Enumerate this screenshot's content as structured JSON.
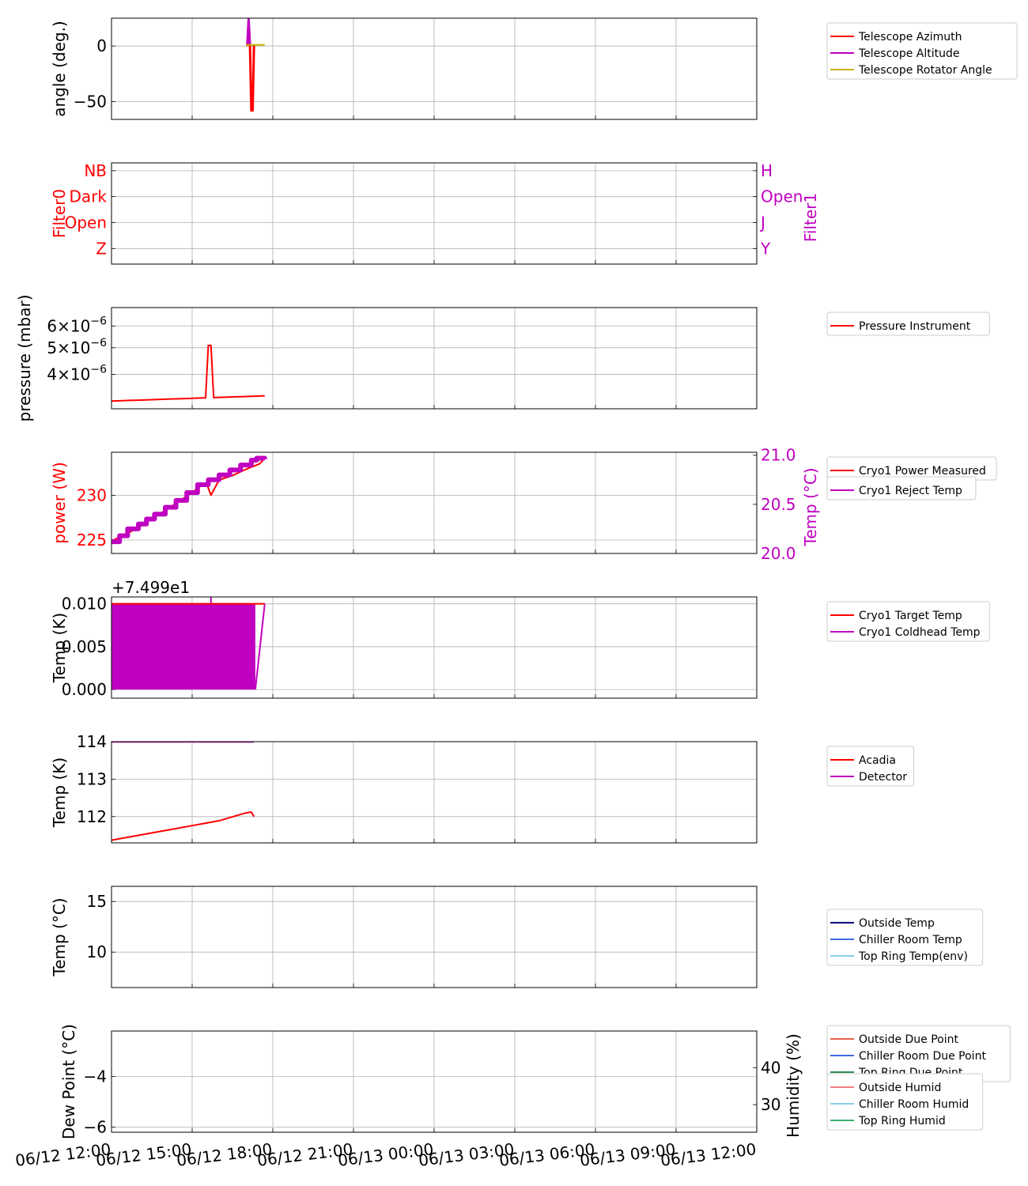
{
  "x_ticks": [
    "06/12 12:00",
    "06/12 15:00",
    "06/12 18:00",
    "06/12 21:00",
    "06/13 00:00",
    "06/13 03:00",
    "06/13 06:00",
    "06/13 09:00",
    "06/13 12:00"
  ],
  "chart_data": [
    {
      "type": "line",
      "id": "telescope",
      "xlim_hours": [
        0,
        24
      ],
      "ylabel": "angle (deg.)",
      "ylim": [
        -66,
        25
      ],
      "yticks": [
        {
          "v": 0,
          "label": "0"
        },
        {
          "v": -50,
          "label": "−50"
        }
      ],
      "grid": true,
      "legend": "right",
      "series": [
        {
          "name": "Telescope Azimuth",
          "color": "#ff0000"
        },
        {
          "name": "Telescope Altitude",
          "color": "#c000c0"
        },
        {
          "name": "Telescope Rotator Angle",
          "color": "#c8b400"
        }
      ]
    },
    {
      "type": "line",
      "id": "filters",
      "xlim_hours": [
        0,
        24
      ],
      "ylabel": "Filter0",
      "ylabel_color": "#ff0000",
      "ylabel_right": "Filter1",
      "ylabel_right_color": "#c000c0",
      "ylim": [
        -0.6,
        3.3
      ],
      "yticks": [
        {
          "v": 3,
          "label": "NB"
        },
        {
          "v": 2,
          "label": "Dark"
        },
        {
          "v": 1,
          "label": "Open"
        },
        {
          "v": 0,
          "label": "Z"
        }
      ],
      "yticks_right": [
        {
          "v": 3,
          "label": "H"
        },
        {
          "v": 2,
          "label": "Open"
        },
        {
          "v": 1,
          "label": "J"
        },
        {
          "v": 0,
          "label": "Y"
        }
      ],
      "grid": true
    },
    {
      "type": "line",
      "id": "pressure",
      "xlim_hours": [
        0,
        24
      ],
      "ylabel": "pressure (mbar)",
      "yscale": "log",
      "ylim": [
        3e-06,
        7e-06
      ],
      "yticks": [
        {
          "v": 6e-06,
          "mant": "6",
          "exp": "−6"
        },
        {
          "v": 5e-06,
          "mant": "5",
          "exp": "−6"
        },
        {
          "v": 4e-06,
          "mant": "4",
          "exp": "−6"
        }
      ],
      "grid": true,
      "legend": "right",
      "series": [
        {
          "name": "Pressure Instrument",
          "color": "#ff0000"
        }
      ]
    },
    {
      "type": "line",
      "id": "cryo-power",
      "xlim_hours": [
        0,
        24
      ],
      "ylabel": "power (W)",
      "ylabel_color": "#ff0000",
      "ylim": [
        223.5,
        234.8
      ],
      "yticks": [
        {
          "v": 230,
          "label": "230"
        },
        {
          "v": 225,
          "label": "225"
        }
      ],
      "ylabel_right": "Temp (°C)",
      "ylabel_right_color": "#c000c0",
      "ylim_right": [
        20.0,
        21.03
      ],
      "yticks_right": [
        {
          "v": 21.0,
          "label": "21.0"
        },
        {
          "v": 20.5,
          "label": "20.5"
        },
        {
          "v": 20.0,
          "label": "20.0"
        }
      ],
      "grid": true,
      "legend": "right",
      "series": [
        {
          "name": "Cryo1 Power Measured",
          "color": "#ff0000",
          "axis": "left",
          "x": [
            0.0,
            0.5,
            1.0,
            1.5,
            2.0,
            2.5,
            3.0,
            3.3,
            3.55,
            3.7,
            4.0,
            4.5,
            5.0,
            5.5,
            5.7
          ],
          "y": [
            224.9,
            225.6,
            226.4,
            227.4,
            228.3,
            229.3,
            230.3,
            231.0,
            231.2,
            230.0,
            231.7,
            232.2,
            232.9,
            233.5,
            234.1
          ]
        },
        {
          "name": "Cryo1 Reject Temp",
          "color": "#c000c0",
          "axis": "right",
          "x": [
            0.0,
            0.3,
            0.6,
            1.0,
            1.3,
            1.6,
            2.0,
            2.4,
            2.8,
            3.2,
            3.6,
            4.0,
            4.4,
            4.8,
            5.2,
            5.4,
            5.7
          ],
          "y": [
            20.12,
            20.18,
            20.25,
            20.3,
            20.35,
            20.4,
            20.47,
            20.54,
            20.62,
            20.7,
            20.75,
            20.8,
            20.85,
            20.9,
            20.95,
            20.97,
            20.96
          ]
        }
      ]
    },
    {
      "type": "line",
      "id": "cryo-temp",
      "xlim_hours": [
        0,
        24
      ],
      "ylabel": "Temp (K)",
      "offset_text": "+7.499e1",
      "ylim": [
        -0.001,
        0.0108
      ],
      "yticks": [
        {
          "v": 0.01,
          "label": "0.010"
        },
        {
          "v": 0.005,
          "label": "0.005"
        },
        {
          "v": 0.0,
          "label": "0.000"
        }
      ],
      "grid": true,
      "legend": "right",
      "series": [
        {
          "name": "Cryo1 Target Temp",
          "color": "#ff0000",
          "x": [
            0.0,
            5.7
          ],
          "y": [
            0.01,
            0.01
          ]
        },
        {
          "name": "Cryo1 Coldhead Temp",
          "color": "#c000c0",
          "x_fill": [
            0.0,
            5.35
          ],
          "range": [
            0.0,
            0.01
          ],
          "x_tail": [
            5.35,
            5.7
          ],
          "y_tail": [
            0.0,
            0.01
          ],
          "spike_x": 3.7
        }
      ]
    },
    {
      "type": "line",
      "id": "acadia-detector",
      "xlim_hours": [
        0,
        24
      ],
      "ylabel": "Temp (K)",
      "ylim": [
        111.3,
        114.0
      ],
      "yticks": [
        {
          "v": 114,
          "label": "114"
        },
        {
          "v": 113,
          "label": "113"
        },
        {
          "v": 112,
          "label": "112"
        }
      ],
      "grid": true,
      "legend": "right",
      "series": [
        {
          "name": "Acadia",
          "color": "#ff0000",
          "x": [
            0.0,
            1.0,
            2.0,
            3.0,
            4.0,
            5.0,
            5.2,
            5.3
          ],
          "y": [
            111.37,
            111.5,
            111.63,
            111.76,
            111.89,
            112.1,
            112.12,
            112.0
          ]
        },
        {
          "name": "Detector",
          "color": "#c000c0",
          "x": [
            0.0,
            5.3
          ],
          "y": [
            113.99,
            113.99
          ]
        }
      ]
    },
    {
      "type": "line",
      "id": "env-temp",
      "xlim_hours": [
        0,
        24
      ],
      "ylabel": "Temp (°C)",
      "ylim": [
        6.5,
        16.5
      ],
      "yticks": [
        {
          "v": 15,
          "label": "15"
        },
        {
          "v": 10,
          "label": "10"
        }
      ],
      "grid": true,
      "legend": "right",
      "series": [
        {
          "name": "Outside Temp",
          "color": "#000080"
        },
        {
          "name": "Chiller Room Temp",
          "color": "#4169e1"
        },
        {
          "name": "Top Ring Temp(env)",
          "color": "#87ceeb"
        }
      ]
    },
    {
      "type": "line",
      "id": "dewpoint-humidity",
      "xlim_hours": [
        0,
        24
      ],
      "ylabel": "Dew Point (°C)",
      "ylim": [
        -6.2,
        -2.2
      ],
      "yticks": [
        {
          "v": -4,
          "label": "−4"
        },
        {
          "v": -6,
          "label": "−6"
        }
      ],
      "ylabel_right": "Humidity (%)",
      "ylim_right": [
        22.5,
        50
      ],
      "yticks_right": [
        {
          "v": 40,
          "label": "40"
        },
        {
          "v": 30,
          "label": "30"
        }
      ],
      "grid": true,
      "legend": "right",
      "series": [
        {
          "name": "Outside Due Point",
          "color": "#e8604c"
        },
        {
          "name": "Chiller Room Due Point",
          "color": "#4169e1"
        },
        {
          "name": "Top Ring Due Point",
          "color": "#2e8b57"
        }
      ],
      "series_right": [
        {
          "name": "Outside Humid",
          "color": "#f08080"
        },
        {
          "name": "Chiller Room Humid",
          "color": "#87ceeb"
        },
        {
          "name": "Top Ring Humid",
          "color": "#3cb371"
        }
      ]
    }
  ]
}
